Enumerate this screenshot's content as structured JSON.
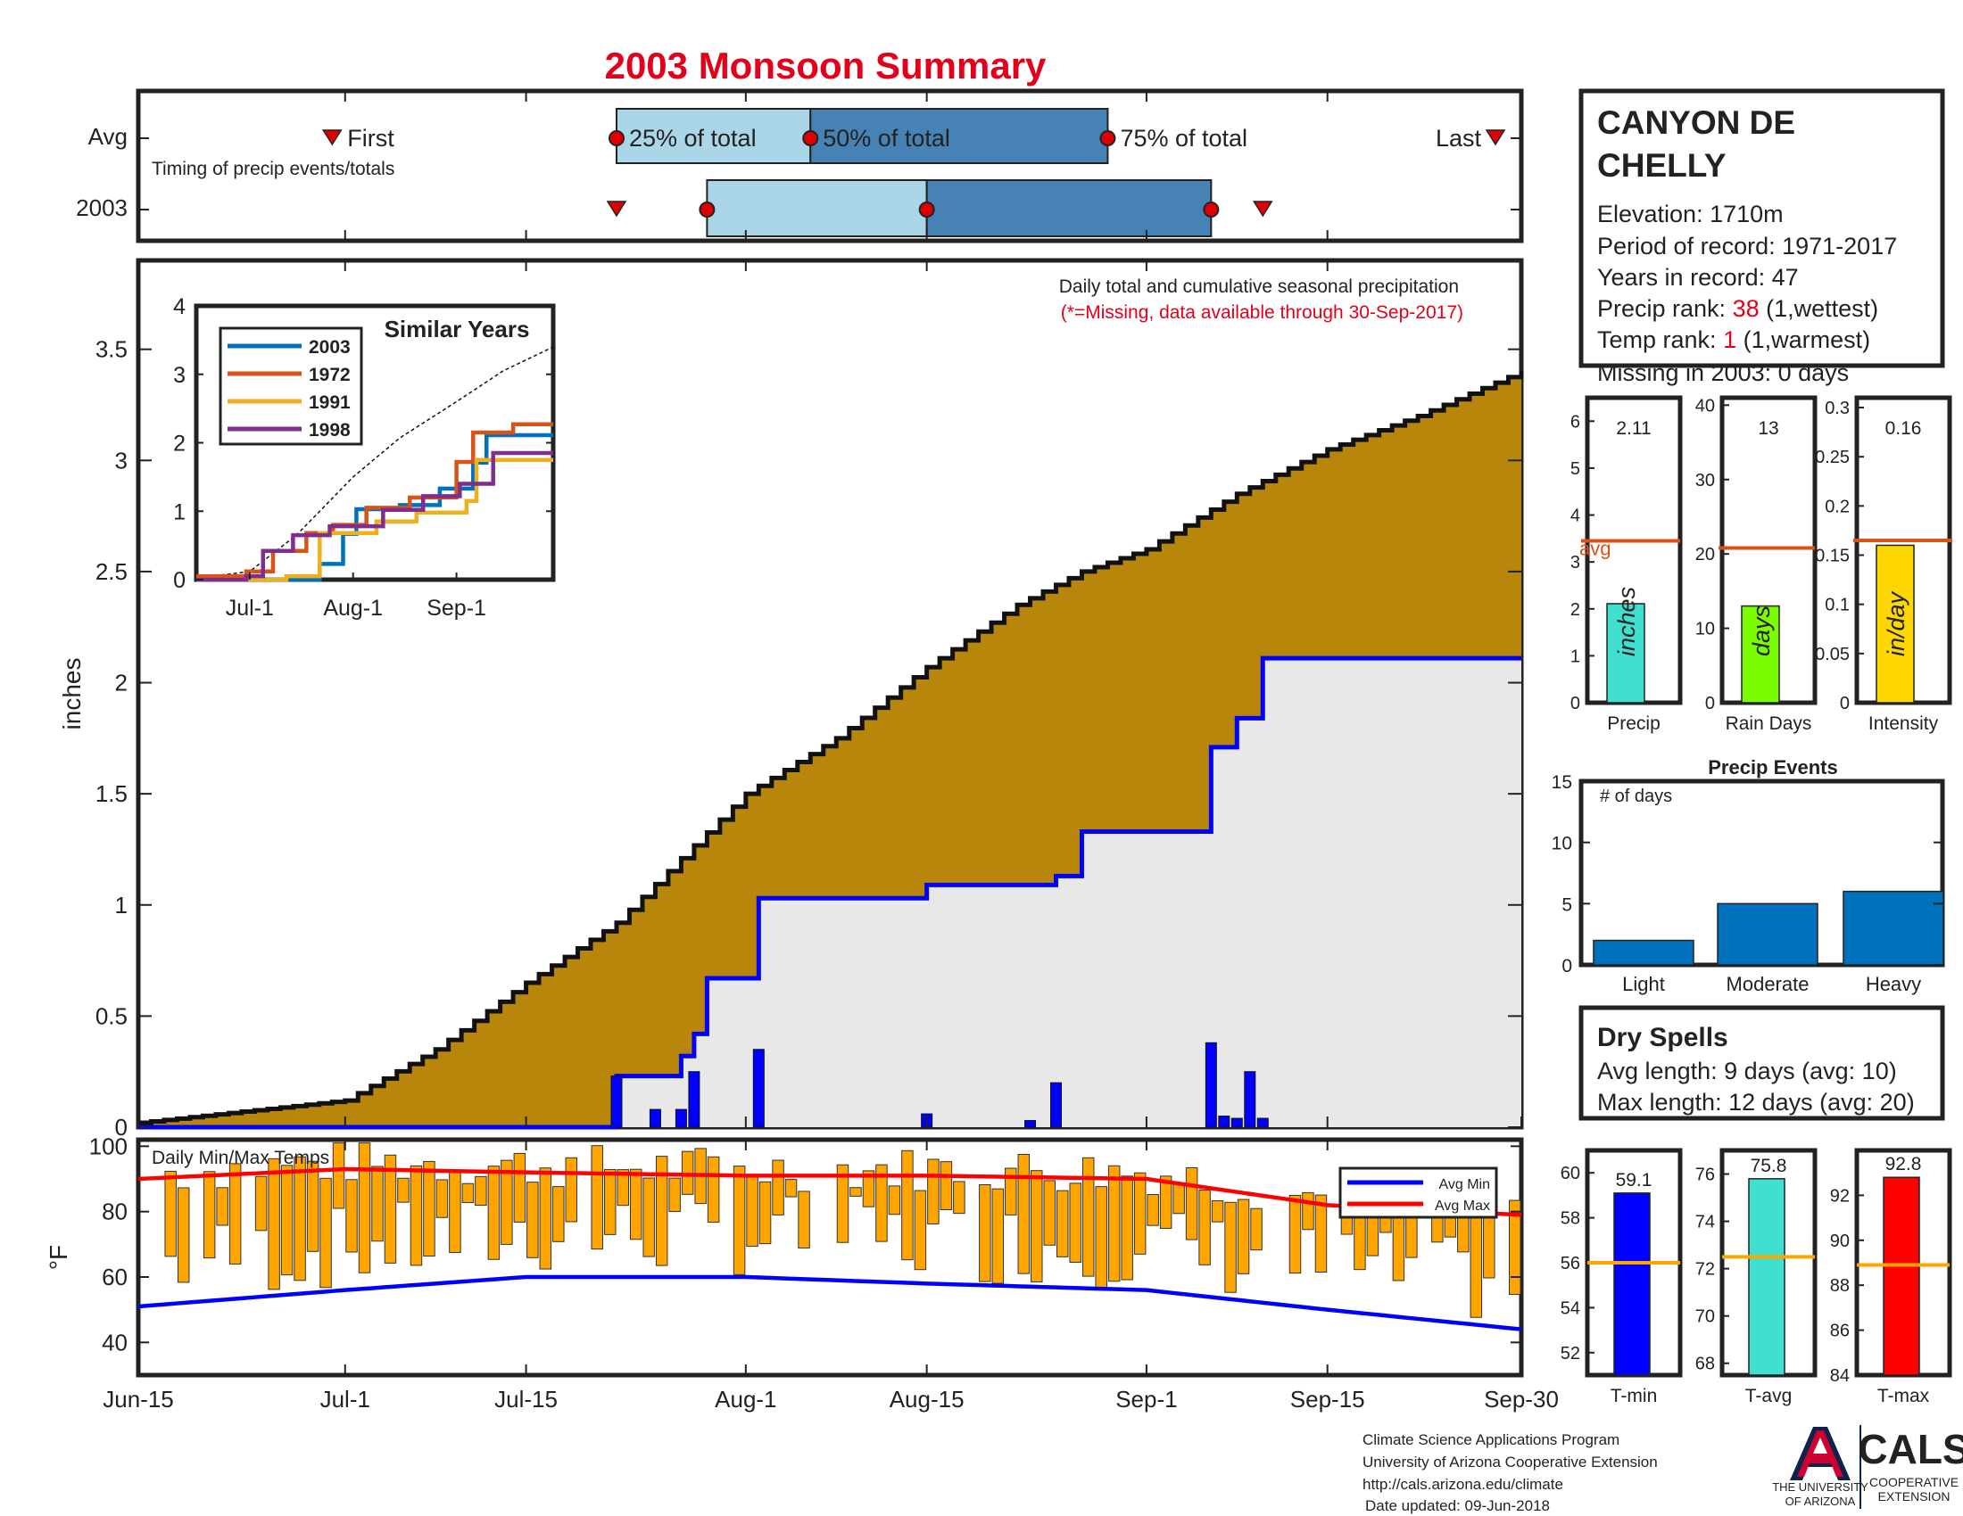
{
  "title": "2003 Monsoon Summary",
  "timing": {
    "row_avg": "Avg",
    "row_year": "2003",
    "caption": "Timing of precip events/totals",
    "first_label": "First",
    "last_label": "Last",
    "p25_label": "25% of total",
    "p50_label": "50% of total",
    "p75_label": "75% of total",
    "avg": {
      "first": "2003-06-30",
      "p25": "2003-07-22",
      "p50": "2003-08-06",
      "p75": "2003-08-29",
      "last": "2003-09-28"
    },
    "year": {
      "first": "2003-07-22",
      "p25": "2003-07-29",
      "p50": "2003-08-15",
      "p75": "2003-09-06",
      "last": "2003-09-10"
    },
    "light_color": "#abd6e8",
    "dark_color": "#4682b4"
  },
  "station": {
    "name_line1": "CANYON DE",
    "name_line2": "CHELLY",
    "elevation": "Elevation: 1710m",
    "period": "Period of record: 1971-2017",
    "years": "Years in record: 47",
    "precip_rank_label": "Precip rank: ",
    "precip_rank_value": "38",
    "precip_rank_note": " (1,wettest)",
    "temp_rank_label": "Temp rank: ",
    "temp_rank_value": "1",
    "temp_rank_note": " (1,warmest)",
    "missing": "Missing in 2003: 0 days"
  },
  "main_chart": {
    "ylabel": "inches",
    "note1": "Daily total and cumulative seasonal precipitation",
    "note2": "(*=Missing, data available through 30-Sep-2017)",
    "yticks": [
      "0",
      "0.5",
      "1",
      "1.5",
      "2",
      "2.5",
      "3",
      "3.5"
    ],
    "xticks": [
      "Jun-15",
      "Jul-1",
      "Jul-15",
      "Aug-1",
      "Aug-15",
      "Sep-1",
      "Sep-15",
      "Sep-30"
    ],
    "colors": {
      "avg_fill": "#b8860b",
      "year_fill": "#e8e8e8",
      "year_line": "#0000ff",
      "daily_bar": "#0000ff"
    }
  },
  "inset": {
    "title": "Similar Years",
    "yticks": [
      "0",
      "1",
      "2",
      "3",
      "4"
    ],
    "xticks": [
      "Jul-1",
      "Aug-1",
      "Sep-1"
    ],
    "legend": [
      {
        "name": "2003",
        "color": "#0072bd"
      },
      {
        "name": "1972",
        "color": "#d95319"
      },
      {
        "name": "1991",
        "color": "#edb120"
      },
      {
        "name": "1998",
        "color": "#7e2f8e"
      }
    ]
  },
  "summary_bars": {
    "avg_label": "avg",
    "avg_line_color": "#d95319",
    "panels": [
      {
        "label": "Precip",
        "unit": "inches",
        "value_text": "2.11",
        "yticks": [
          "0",
          "1",
          "2",
          "3",
          "4",
          "5",
          "6"
        ],
        "color": "#40e0d0"
      },
      {
        "label": "Rain Days",
        "unit": "days",
        "value_text": "13",
        "yticks": [
          "0",
          "10",
          "20",
          "30",
          "40"
        ],
        "color": "#7cfc00"
      },
      {
        "label": "Intensity",
        "unit": "in/day",
        "value_text": "0.16",
        "yticks": [
          "0",
          "0.05",
          "0.1",
          "0.15",
          "0.2",
          "0.25",
          "0.3"
        ],
        "color": "#ffd700"
      }
    ]
  },
  "precip_events": {
    "title": "Precip Events",
    "ylabel": "# of days",
    "yticks": [
      "0",
      "5",
      "10",
      "15"
    ],
    "color": "#0072bd"
  },
  "dry_spells": {
    "title": "Dry Spells",
    "avg_length": "Avg length: 9 days (avg: 10)",
    "max_length": "Max length: 12 days (avg: 20)",
    "color": "#8b4513"
  },
  "temp_chart": {
    "title": "Daily Min/Max Temps",
    "ylabel": "°F",
    "yticks": [
      "40",
      "60",
      "80",
      "100"
    ],
    "legend_min": "Avg Min",
    "legend_max": "Avg Max",
    "bar_color": "#ffa500",
    "avg_min_color": "#0000ff",
    "avg_max_color": "#ff0000"
  },
  "temp_summary": {
    "line_color": "#ffa500",
    "panels": [
      {
        "label": "T-min",
        "value_text": "59.1",
        "yticks": [
          "52",
          "54",
          "56",
          "58",
          "60"
        ],
        "color": "#0000ff"
      },
      {
        "label": "T-avg",
        "value_text": "75.8",
        "yticks": [
          "68",
          "70",
          "72",
          "74",
          "76"
        ],
        "color": "#40e0d0"
      },
      {
        "label": "T-max",
        "value_text": "92.8",
        "yticks": [
          "84",
          "86",
          "88",
          "90",
          "92"
        ],
        "color": "#ff0000"
      }
    ]
  },
  "footer": {
    "line1": "Climate Science Applications Program",
    "line2": "University of Arizona Cooperative Extension",
    "line3": "http://cals.arizona.edu/climate",
    "line4": "Date updated: 09-Jun-2018",
    "ua_line1": "THE UNIVERSITY",
    "ua_line2": "OF ARIZONA",
    "cals": "CALS",
    "coop1": "COOPERATIVE",
    "coop2": "EXTENSION",
    "ua_red": "#cc0033",
    "ua_blue": "#0c234b"
  },
  "chart_data": [
    {
      "type": "area",
      "title": "Daily total and cumulative seasonal precipitation",
      "ylabel": "inches",
      "ylim": [
        0,
        3.9
      ],
      "x_range": [
        "2003-06-15",
        "2003-09-30"
      ],
      "series": [
        {
          "name": "avg",
          "x": [
            "2003-06-15",
            "2003-07-01",
            "2003-07-08",
            "2003-07-15",
            "2003-07-22",
            "2003-08-01",
            "2003-08-08",
            "2003-08-15",
            "2003-08-22",
            "2003-08-27",
            "2003-09-01",
            "2003-09-08",
            "2003-09-15",
            "2003-09-22",
            "2003-09-30"
          ],
          "values": [
            0.02,
            0.12,
            0.35,
            0.65,
            0.92,
            1.5,
            1.75,
            2.07,
            2.35,
            2.5,
            2.6,
            2.85,
            3.05,
            3.2,
            3.4
          ]
        },
        {
          "name": "2003",
          "x": [
            "2003-06-15",
            "2003-07-22",
            "2003-07-24",
            "2003-07-27",
            "2003-07-28",
            "2003-07-29",
            "2003-08-02",
            "2003-08-15",
            "2003-08-25",
            "2003-08-27",
            "2003-09-06",
            "2003-09-08",
            "2003-09-10",
            "2003-09-30"
          ],
          "values": [
            0.0,
            0.23,
            0.23,
            0.32,
            0.42,
            0.67,
            1.03,
            1.09,
            1.13,
            1.33,
            1.71,
            1.84,
            2.11,
            2.11
          ]
        }
      ],
      "daily": {
        "x": [
          "2003-07-22",
          "2003-07-25",
          "2003-07-27",
          "2003-07-28",
          "2003-08-02",
          "2003-08-15",
          "2003-08-23",
          "2003-08-25",
          "2003-09-06",
          "2003-09-07",
          "2003-09-08",
          "2003-09-09",
          "2003-09-10"
        ],
        "values": [
          0.23,
          0.08,
          0.08,
          0.25,
          0.35,
          0.06,
          0.03,
          0.2,
          0.38,
          0.05,
          0.04,
          0.25,
          0.04
        ]
      }
    },
    {
      "type": "line",
      "title": "Similar Years",
      "ylim": [
        0,
        4
      ],
      "x_range": [
        "2003-06-15",
        "2003-09-30"
      ],
      "series": [
        {
          "name": "avg",
          "x": [
            "2003-06-15",
            "2003-07-01",
            "2003-07-15",
            "2003-08-01",
            "2003-08-15",
            "2003-09-01",
            "2003-09-15",
            "2003-09-30"
          ],
          "values": [
            0.02,
            0.12,
            0.65,
            1.5,
            2.07,
            2.6,
            3.05,
            3.4
          ]
        },
        {
          "name": "2003",
          "x": [
            "2003-06-15",
            "2003-07-22",
            "2003-07-29",
            "2003-08-02",
            "2003-08-15",
            "2003-08-27",
            "2003-09-06",
            "2003-09-10",
            "2003-09-30"
          ],
          "values": [
            0,
            0.23,
            0.67,
            1.03,
            1.09,
            1.33,
            1.71,
            2.11,
            2.11
          ]
        },
        {
          "name": "1972",
          "x": [
            "2003-06-15",
            "2003-06-30",
            "2003-07-08",
            "2003-07-18",
            "2003-07-26",
            "2003-08-05",
            "2003-08-18",
            "2003-09-01",
            "2003-09-06",
            "2003-09-18",
            "2003-09-30"
          ],
          "values": [
            0.05,
            0.12,
            0.42,
            0.68,
            0.8,
            1.05,
            1.2,
            1.72,
            2.15,
            2.27,
            2.27
          ]
        },
        {
          "name": "1991",
          "x": [
            "2003-06-15",
            "2003-07-12",
            "2003-07-22",
            "2003-08-08",
            "2003-08-20",
            "2003-09-04",
            "2003-09-07",
            "2003-09-30"
          ],
          "values": [
            0,
            0.05,
            0.68,
            0.85,
            0.98,
            1.15,
            1.75,
            1.75
          ]
        },
        {
          "name": "1998",
          "x": [
            "2003-06-15",
            "2003-06-30",
            "2003-07-05",
            "2003-07-14",
            "2003-07-25",
            "2003-08-10",
            "2003-08-22",
            "2003-09-02",
            "2003-09-12",
            "2003-09-30"
          ],
          "values": [
            0,
            0.05,
            0.42,
            0.65,
            0.78,
            1.02,
            1.22,
            1.4,
            1.85,
            1.85
          ]
        }
      ]
    },
    {
      "type": "bar",
      "title": "Precip / Rain Days / Intensity",
      "categories": [
        "Precip",
        "Rain Days",
        "Intensity"
      ],
      "values": [
        2.11,
        13,
        0.16
      ],
      "avg": [
        3.45,
        20.8,
        0.165
      ],
      "ylim": [
        [
          0,
          6.5
        ],
        [
          0,
          41
        ],
        [
          0,
          0.31
        ]
      ]
    },
    {
      "type": "bar",
      "title": "Precip Events",
      "categories": [
        "Light",
        "Moderate",
        "Heavy"
      ],
      "values": [
        2,
        5,
        6
      ],
      "ylim": [
        0,
        15
      ]
    },
    {
      "type": "bar",
      "title": "Daily Min/Max Temps",
      "ylabel": "°F",
      "ylim": [
        30,
        102
      ],
      "x_range": [
        "2003-06-15",
        "2003-09-30"
      ],
      "avg_min": {
        "x": [
          "2003-06-15",
          "2003-07-01",
          "2003-07-15",
          "2003-08-01",
          "2003-08-15",
          "2003-09-01",
          "2003-09-15",
          "2003-09-30"
        ],
        "values": [
          51,
          56,
          60,
          60,
          58,
          56,
          50,
          44
        ]
      },
      "avg_max": {
        "x": [
          "2003-06-15",
          "2003-07-01",
          "2003-07-15",
          "2003-08-01",
          "2003-08-15",
          "2003-09-01",
          "2003-09-15",
          "2003-09-30"
        ],
        "values": [
          90,
          93,
          92,
          91,
          91,
          90,
          82,
          79
        ]
      }
    },
    {
      "type": "bar",
      "title": "T-min / T-avg / T-max",
      "categories": [
        "T-min",
        "T-avg",
        "T-max"
      ],
      "values": [
        59.1,
        75.8,
        92.8
      ],
      "avg": [
        56.0,
        72.5,
        88.9
      ],
      "ylim": [
        [
          51,
          61
        ],
        [
          67.5,
          77
        ],
        [
          84,
          94
        ]
      ]
    }
  ]
}
